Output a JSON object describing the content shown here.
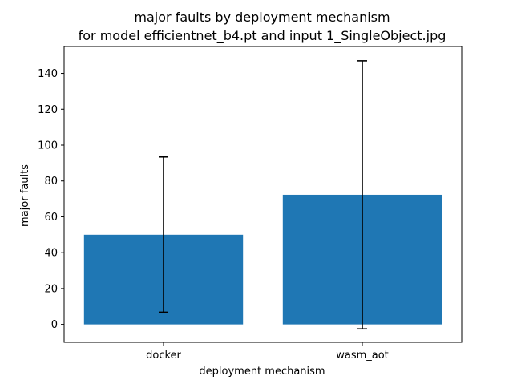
{
  "chart_data": {
    "type": "bar",
    "title": "major faults by deployment mechanism",
    "subtitle": "for model efficientnet_b4.pt and input 1_SingleObject.jpg",
    "xlabel": "deployment mechanism",
    "ylabel": "major faults",
    "categories": [
      "docker",
      "wasm_aot"
    ],
    "values": [
      50,
      72.3
    ],
    "error_low": [
      6.8,
      -2.5
    ],
    "error_high": [
      93.4,
      147
    ],
    "ylim": [
      -10,
      155
    ],
    "yticks": [
      0,
      20,
      40,
      60,
      80,
      100,
      120,
      140
    ],
    "grid": false,
    "colors": {
      "bar": "#1f77b4",
      "errorbar": "#000000"
    }
  }
}
